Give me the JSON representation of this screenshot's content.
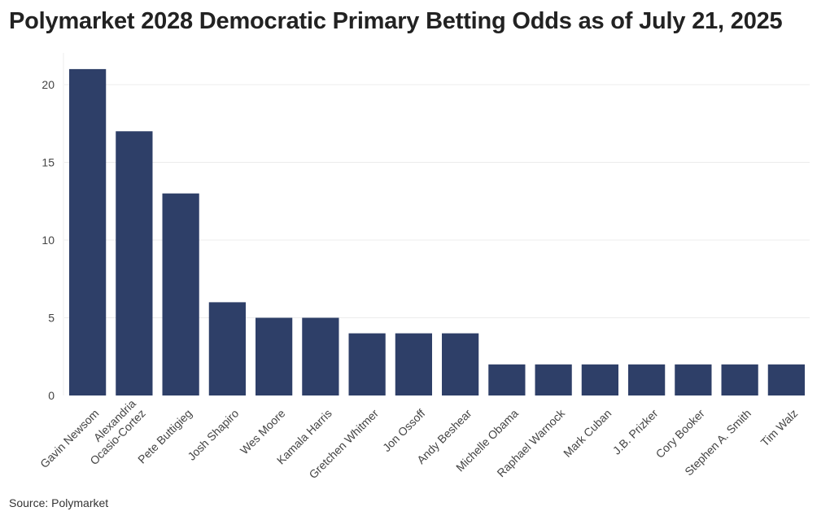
{
  "chart_data": {
    "type": "bar",
    "title": "Polymarket 2028 Democratic Primary Betting Odds as of July 21, 2025",
    "categories": [
      "Gavin Newsom",
      "Alexandria\nOcasio-Cortez",
      "Pete Buttigieg",
      "Josh Shapiro",
      "Wes Moore",
      "Kamala Harris",
      "Gretchen Whitmer",
      "Jon Ossoff",
      "Andy Beshear",
      "Michelle Obama",
      "Raphael Warnock",
      "Mark Cuban",
      "J.B. Prizker",
      "Cory Booker",
      "Stephen A. Smith",
      "Tim Walz"
    ],
    "values": [
      21,
      17,
      13,
      6,
      5,
      5,
      4,
      4,
      4,
      2,
      2,
      2,
      2,
      2,
      2,
      2
    ],
    "ylim": [
      0,
      22
    ],
    "yticks": [
      0,
      5,
      10,
      15,
      20
    ],
    "xlabel": "",
    "ylabel": "",
    "grid": true,
    "bar_color": "#2e3f68",
    "source": "Source: Polymarket"
  }
}
